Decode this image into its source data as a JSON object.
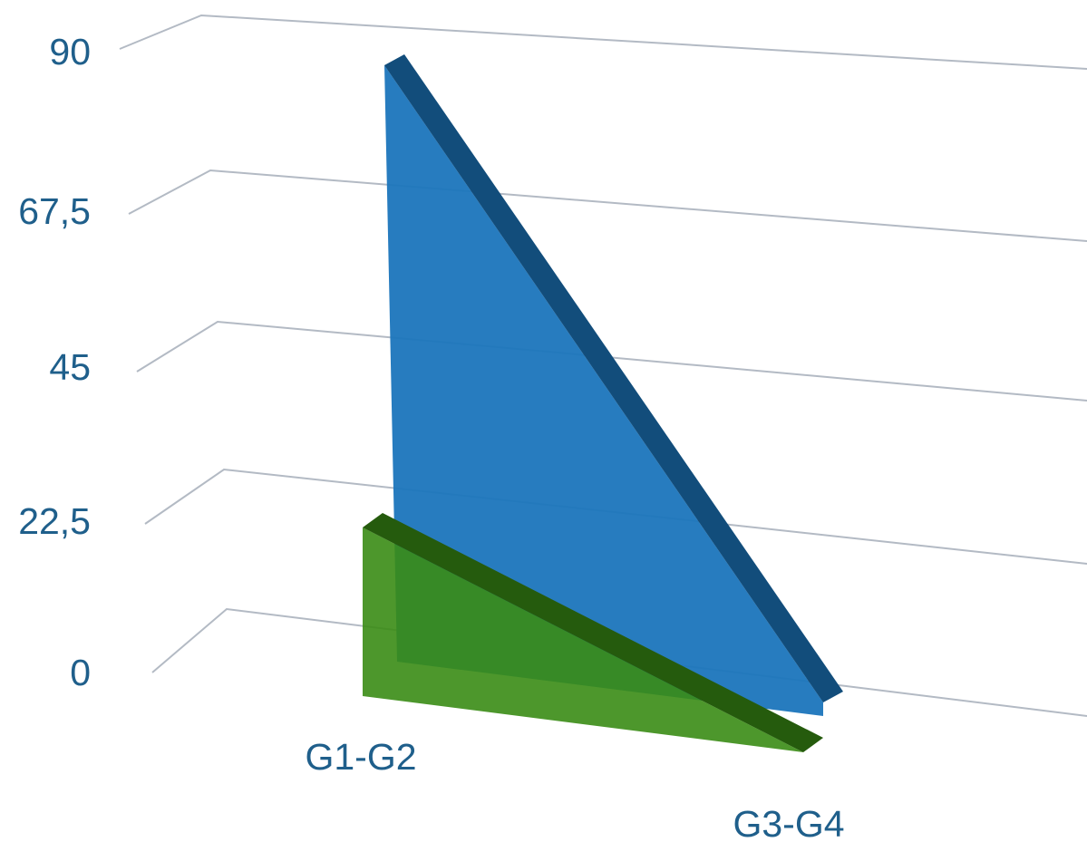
{
  "chart_data": {
    "type": "area",
    "view": "3d",
    "title": "",
    "xlabel": "",
    "ylabel": "",
    "categories": [
      "G1-G2",
      "G3-G4"
    ],
    "series": [
      {
        "values": [
          88,
          2
        ],
        "color": "#1b75bc"
      },
      {
        "values": [
          20,
          -8
        ],
        "color": "#3a8c15"
      }
    ],
    "yticks": [
      "90",
      "67,5",
      "45",
      "22,5",
      "0"
    ],
    "ylim": [
      0,
      90
    ],
    "grid": true,
    "legend": "none"
  },
  "colors": {
    "tick_text": "#1f5f8b",
    "gridline": "#b3bac4"
  }
}
